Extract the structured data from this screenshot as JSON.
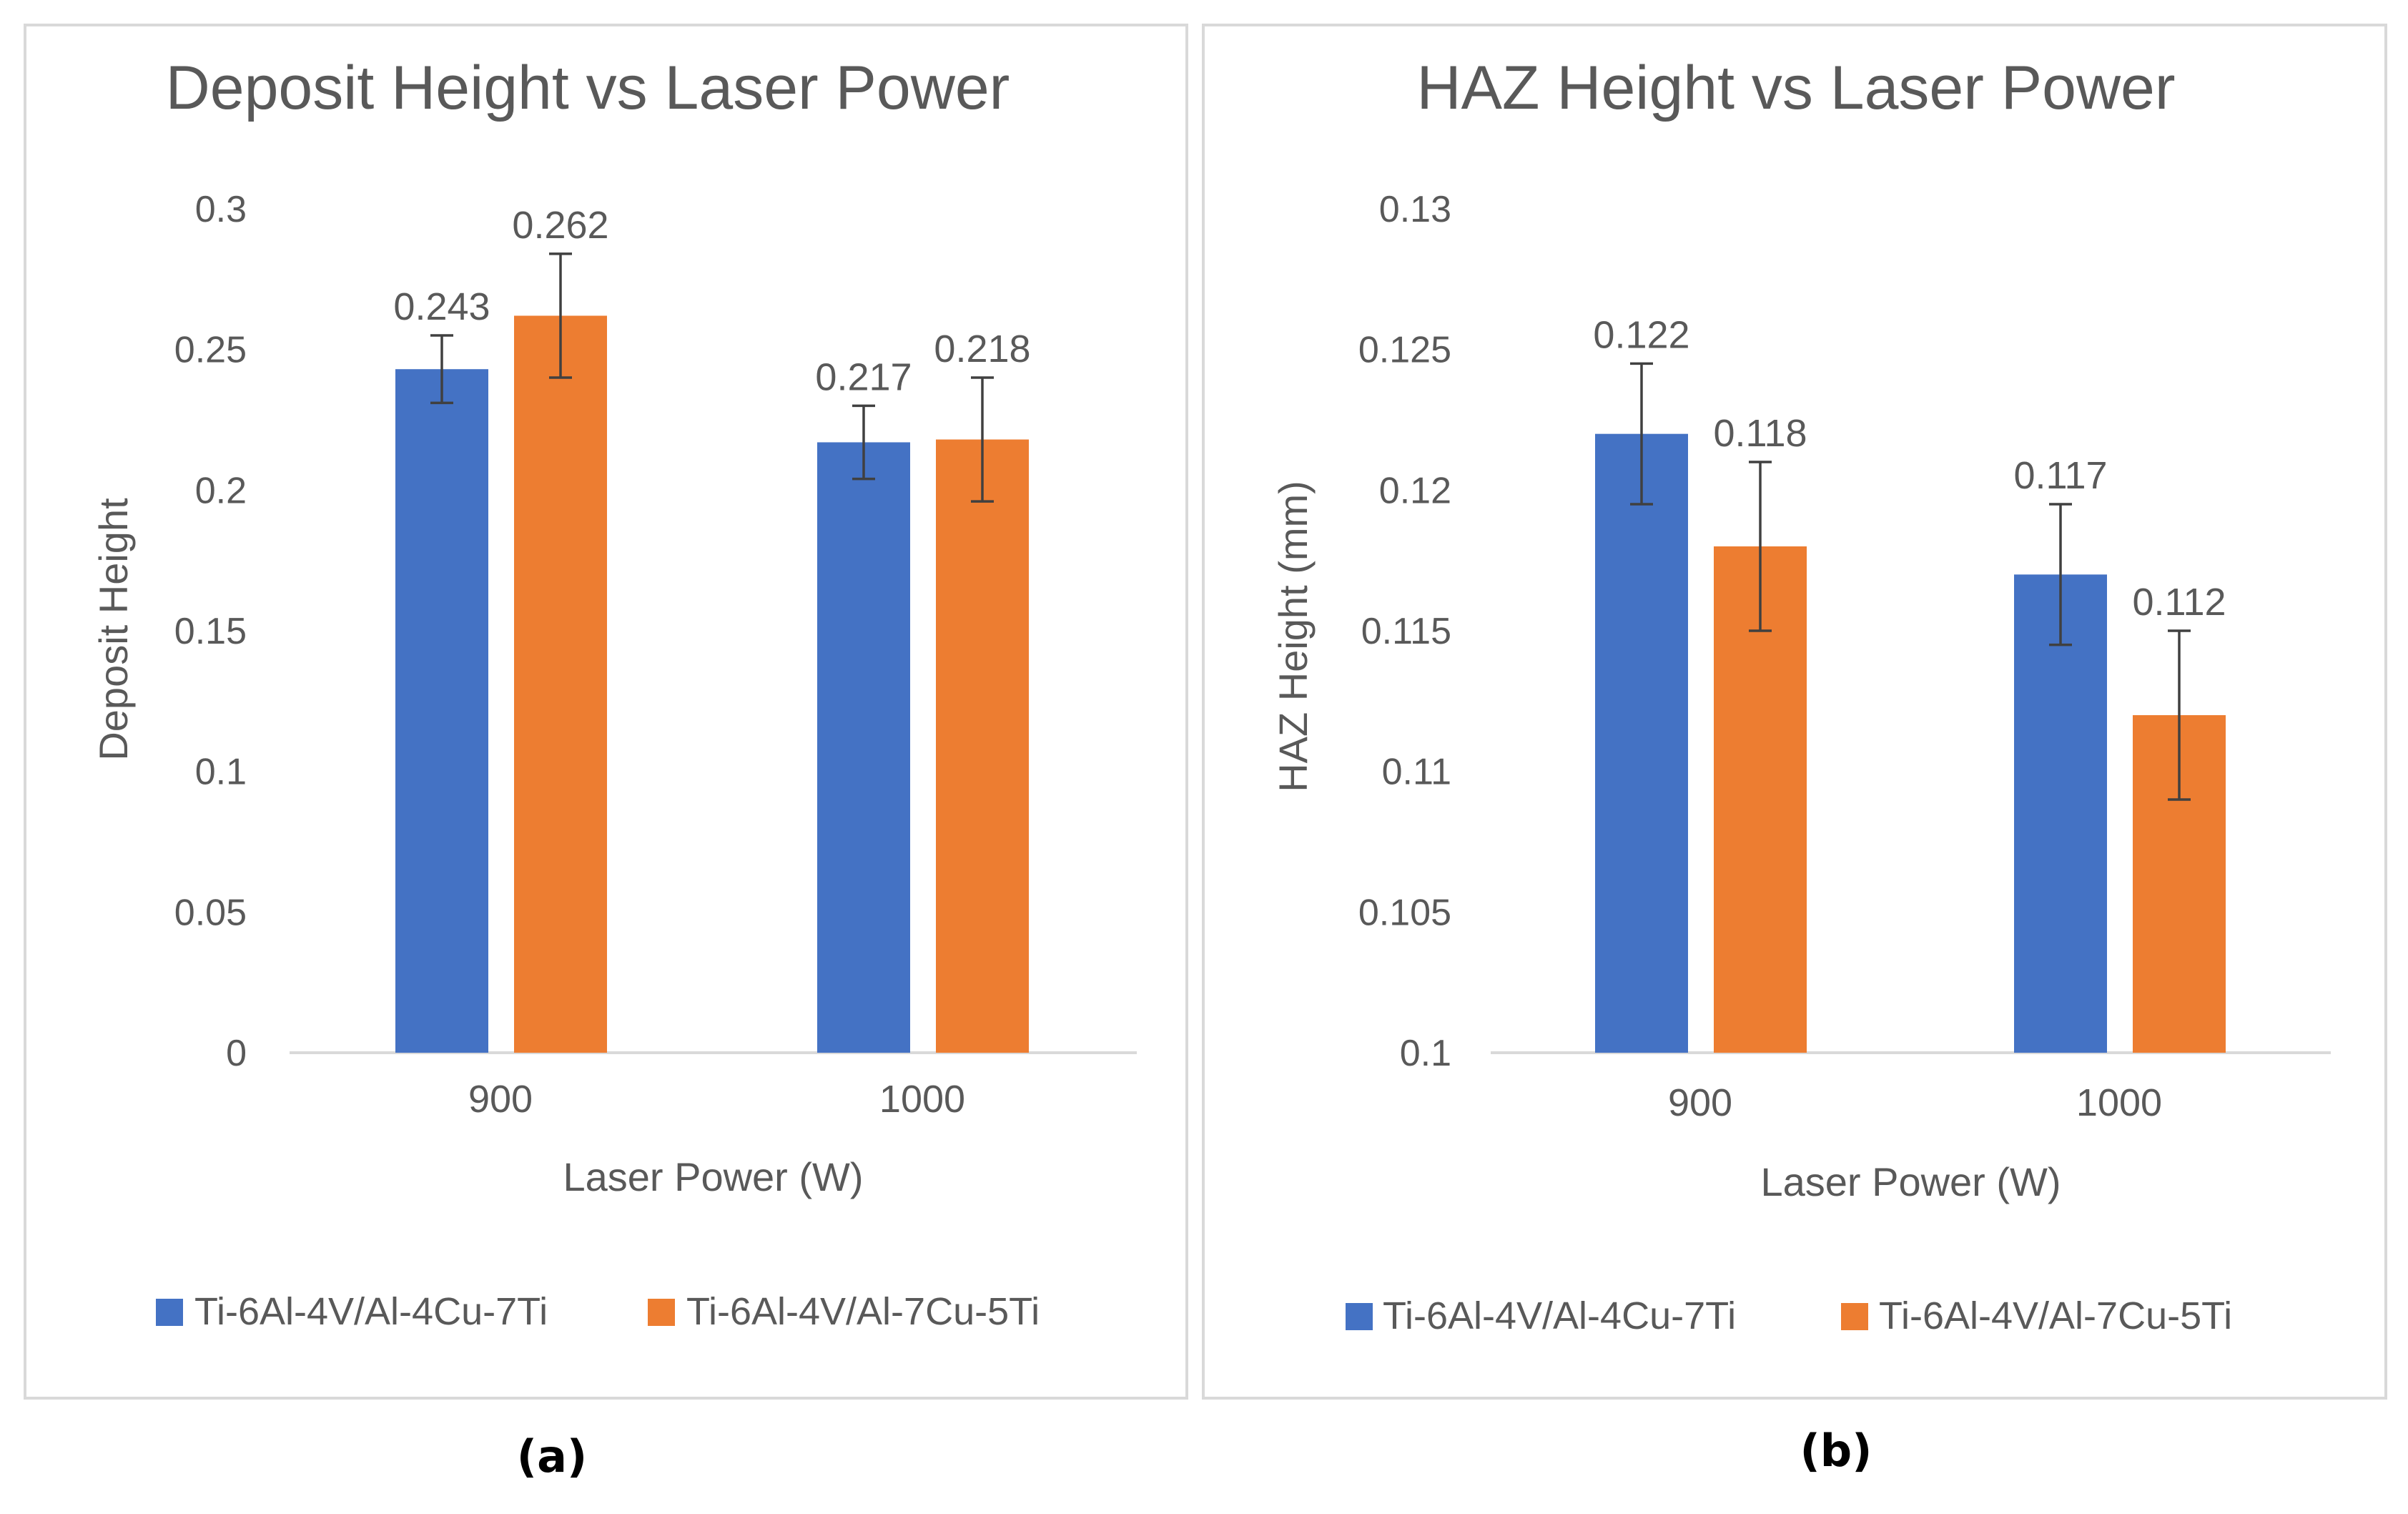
{
  "captions": [
    "(a)",
    "(b)"
  ],
  "colors": {
    "series1": "#4472C4",
    "series2": "#ED7D31",
    "text": "#595959",
    "axis": "#D9D9D9",
    "error": "#404040"
  },
  "chart_data": [
    {
      "type": "bar",
      "title": "Deposit Height vs Laser Power",
      "xlabel": "Laser Power  (W)",
      "ylabel": "Deposit Height",
      "categories": [
        "900",
        "1000"
      ],
      "ylim": [
        0,
        0.3
      ],
      "yticks": [
        0,
        0.05,
        0.1,
        0.15,
        0.2,
        0.25,
        0.3
      ],
      "ytick_labels": [
        "0",
        "0.05",
        "0.1",
        "0.15",
        "0.2",
        "0.25",
        "0.3"
      ],
      "grid": false,
      "legend": "bottom",
      "series": [
        {
          "name": "Ti-6Al-4V/Al-4Cu-7Ti",
          "values": [
            0.243,
            0.217
          ],
          "labels": [
            "0.243",
            "0.217"
          ],
          "errors": [
            0.012,
            0.013
          ]
        },
        {
          "name": "Ti-6Al-4V/Al-7Cu-5Ti",
          "values": [
            0.262,
            0.218
          ],
          "labels": [
            "0.262",
            "0.218"
          ],
          "errors": [
            0.022,
            0.022
          ]
        }
      ]
    },
    {
      "type": "bar",
      "title": "HAZ Height vs Laser Power",
      "xlabel": "Laser Power  (W)",
      "ylabel": "HAZ Height  (mm)",
      "categories": [
        "900",
        "1000"
      ],
      "ylim": [
        0.1,
        0.13
      ],
      "yticks": [
        0.1,
        0.105,
        0.11,
        0.115,
        0.12,
        0.125,
        0.13
      ],
      "ytick_labels": [
        "0.1",
        "0.105",
        "0.11",
        "0.115",
        "0.12",
        "0.125",
        "0.13"
      ],
      "grid": false,
      "legend": "bottom",
      "series": [
        {
          "name": "Ti-6Al-4V/Al-4Cu-7Ti",
          "values": [
            0.122,
            0.117
          ],
          "labels": [
            "0.122",
            "0.117"
          ],
          "errors": [
            0.0025,
            0.0025
          ]
        },
        {
          "name": "Ti-6Al-4V/Al-7Cu-5Ti",
          "values": [
            0.118,
            0.112
          ],
          "labels": [
            "0.118",
            "0.112"
          ],
          "errors": [
            0.003,
            0.003
          ]
        }
      ]
    }
  ]
}
